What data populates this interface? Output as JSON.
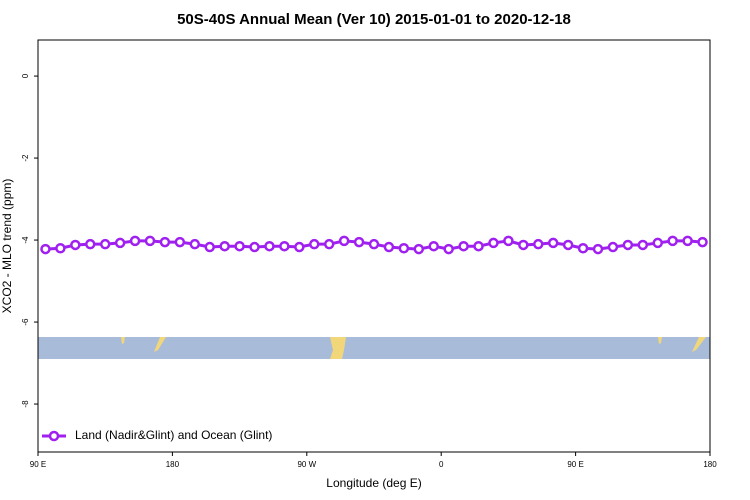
{
  "chart_data": {
    "type": "line",
    "title": "50S-40S Annual Mean (Ver 10)   2015-01-01 to 2020-12-18",
    "x_label": "Longitude (deg E)",
    "y_label": "XCO2 - MLO trend (ppm)",
    "xlim": [
      90,
      540
    ],
    "ylim": [
      -9.17,
      0.88
    ],
    "xticks": [
      {
        "value": 90,
        "label": "90 E"
      },
      180,
      {
        "value": 270,
        "label": "90 W"
      },
      {
        "value": 360,
        "label": "0"
      },
      {
        "value": 450,
        "label": "90 E"
      },
      {
        "value": 540,
        "label": "180"
      }
    ],
    "yticks": [
      0,
      -2,
      -4,
      -6,
      -8
    ],
    "legend": "bottom-left",
    "x": [
      95,
      105,
      115,
      125,
      135,
      145,
      155,
      165,
      175,
      185,
      195,
      205,
      215,
      225,
      235,
      245,
      255,
      265,
      275,
      285,
      295,
      305,
      315,
      325,
      335,
      345,
      355,
      365,
      375,
      385,
      395,
      405,
      415,
      425,
      435,
      445,
      455,
      465,
      475,
      485,
      495,
      505,
      515,
      525,
      535
    ],
    "series": [
      {
        "name": "Land (Nadir&Glint) and Ocean (Glint)",
        "color": "#a020f0",
        "values": [
          -4.22,
          -4.2,
          -4.12,
          -4.1,
          -4.1,
          -4.07,
          -4.02,
          -4.02,
          -4.05,
          -4.05,
          -4.1,
          -4.17,
          -4.15,
          -4.15,
          -4.17,
          -4.15,
          -4.15,
          -4.17,
          -4.1,
          -4.1,
          -4.02,
          -4.05,
          -4.1,
          -4.17,
          -4.2,
          -4.22,
          -4.15,
          -4.22,
          -4.15,
          -4.15,
          -4.07,
          -4.02,
          -4.12,
          -4.1,
          -4.07,
          -4.12,
          -4.2,
          -4.22,
          -4.17,
          -4.12,
          -4.12,
          -4.07,
          -4.02,
          -4.02,
          -4.05
        ]
      }
    ]
  }
}
